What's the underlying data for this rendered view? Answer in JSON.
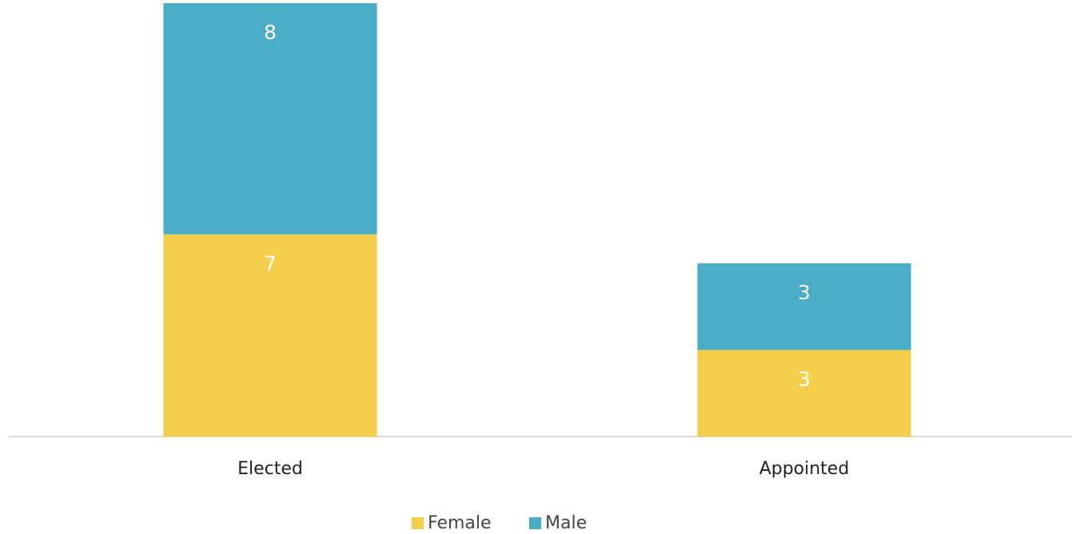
{
  "chart_data": {
    "type": "stacked_bar",
    "categories": [
      "Elected",
      "Appointed"
    ],
    "series": [
      {
        "name": "Female",
        "color": "#f3cf4b",
        "values": [
          7,
          3
        ]
      },
      {
        "name": "Male",
        "color": "#4bacc6",
        "values": [
          8,
          3
        ]
      }
    ],
    "ylim": [
      0,
      15
    ],
    "legend": "bottom"
  }
}
